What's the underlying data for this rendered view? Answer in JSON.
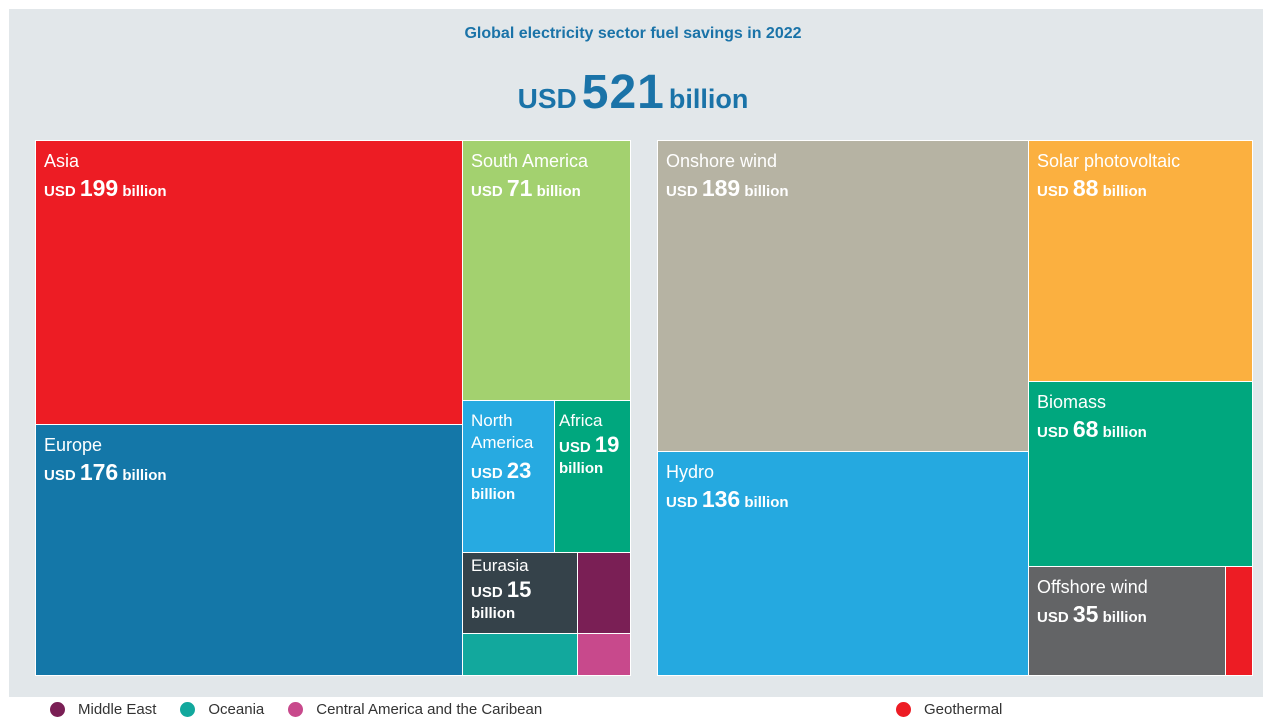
{
  "title": "Global electricity sector fuel savings in 2022",
  "total": {
    "prefix": "USD",
    "value": "521",
    "suffix": "billion"
  },
  "unit_prefix": "USD",
  "unit_suffix": "billion",
  "chart_data": [
    {
      "type": "treemap",
      "title": "Global electricity sector fuel savings in 2022",
      "unit": "USD billion",
      "total": 521,
      "items": [
        {
          "name": "Asia",
          "value": 199,
          "color": "#ed1c24"
        },
        {
          "name": "Europe",
          "value": 176,
          "color": "#1477a8"
        },
        {
          "name": "South America",
          "value": 71,
          "color": "#a3d16f"
        },
        {
          "name": "North America",
          "value": 23,
          "color": "#27aae1"
        },
        {
          "name": "Africa",
          "value": 19,
          "color": "#00a77e"
        },
        {
          "name": "Eurasia",
          "value": 15,
          "color": "#35424a"
        },
        {
          "name": "Middle East",
          "color": "#7a1f55"
        },
        {
          "name": "Oceania",
          "color": "#12a89d"
        },
        {
          "name": "Central America and the Caribean",
          "color": "#c8498c"
        }
      ]
    },
    {
      "type": "treemap",
      "title": "Global electricity sector fuel savings in 2022",
      "unit": "USD billion",
      "total": 521,
      "items": [
        {
          "name": "Onshore wind",
          "value": 189,
          "color": "#b6b3a3"
        },
        {
          "name": "Hydro",
          "value": 136,
          "color": "#25a9e0"
        },
        {
          "name": "Solar photovoltaic",
          "value": 88,
          "color": "#fbb040"
        },
        {
          "name": "Biomass",
          "value": 68,
          "color": "#00a77e"
        },
        {
          "name": "Offshore wind",
          "value": 35,
          "color": "#636466"
        },
        {
          "name": "Geothermal",
          "color": "#ed1c24"
        }
      ]
    }
  ],
  "legend_left": [
    {
      "label": "Middle East",
      "color": "#7a1f55"
    },
    {
      "label": "Oceania",
      "color": "#12a89d"
    },
    {
      "label": "Central America and the Caribean",
      "color": "#c8498c"
    }
  ],
  "legend_right": [
    {
      "label": "Geothermal",
      "color": "#ed1c24"
    }
  ],
  "labels": {
    "north_line1": "North",
    "north_line2": "America"
  }
}
